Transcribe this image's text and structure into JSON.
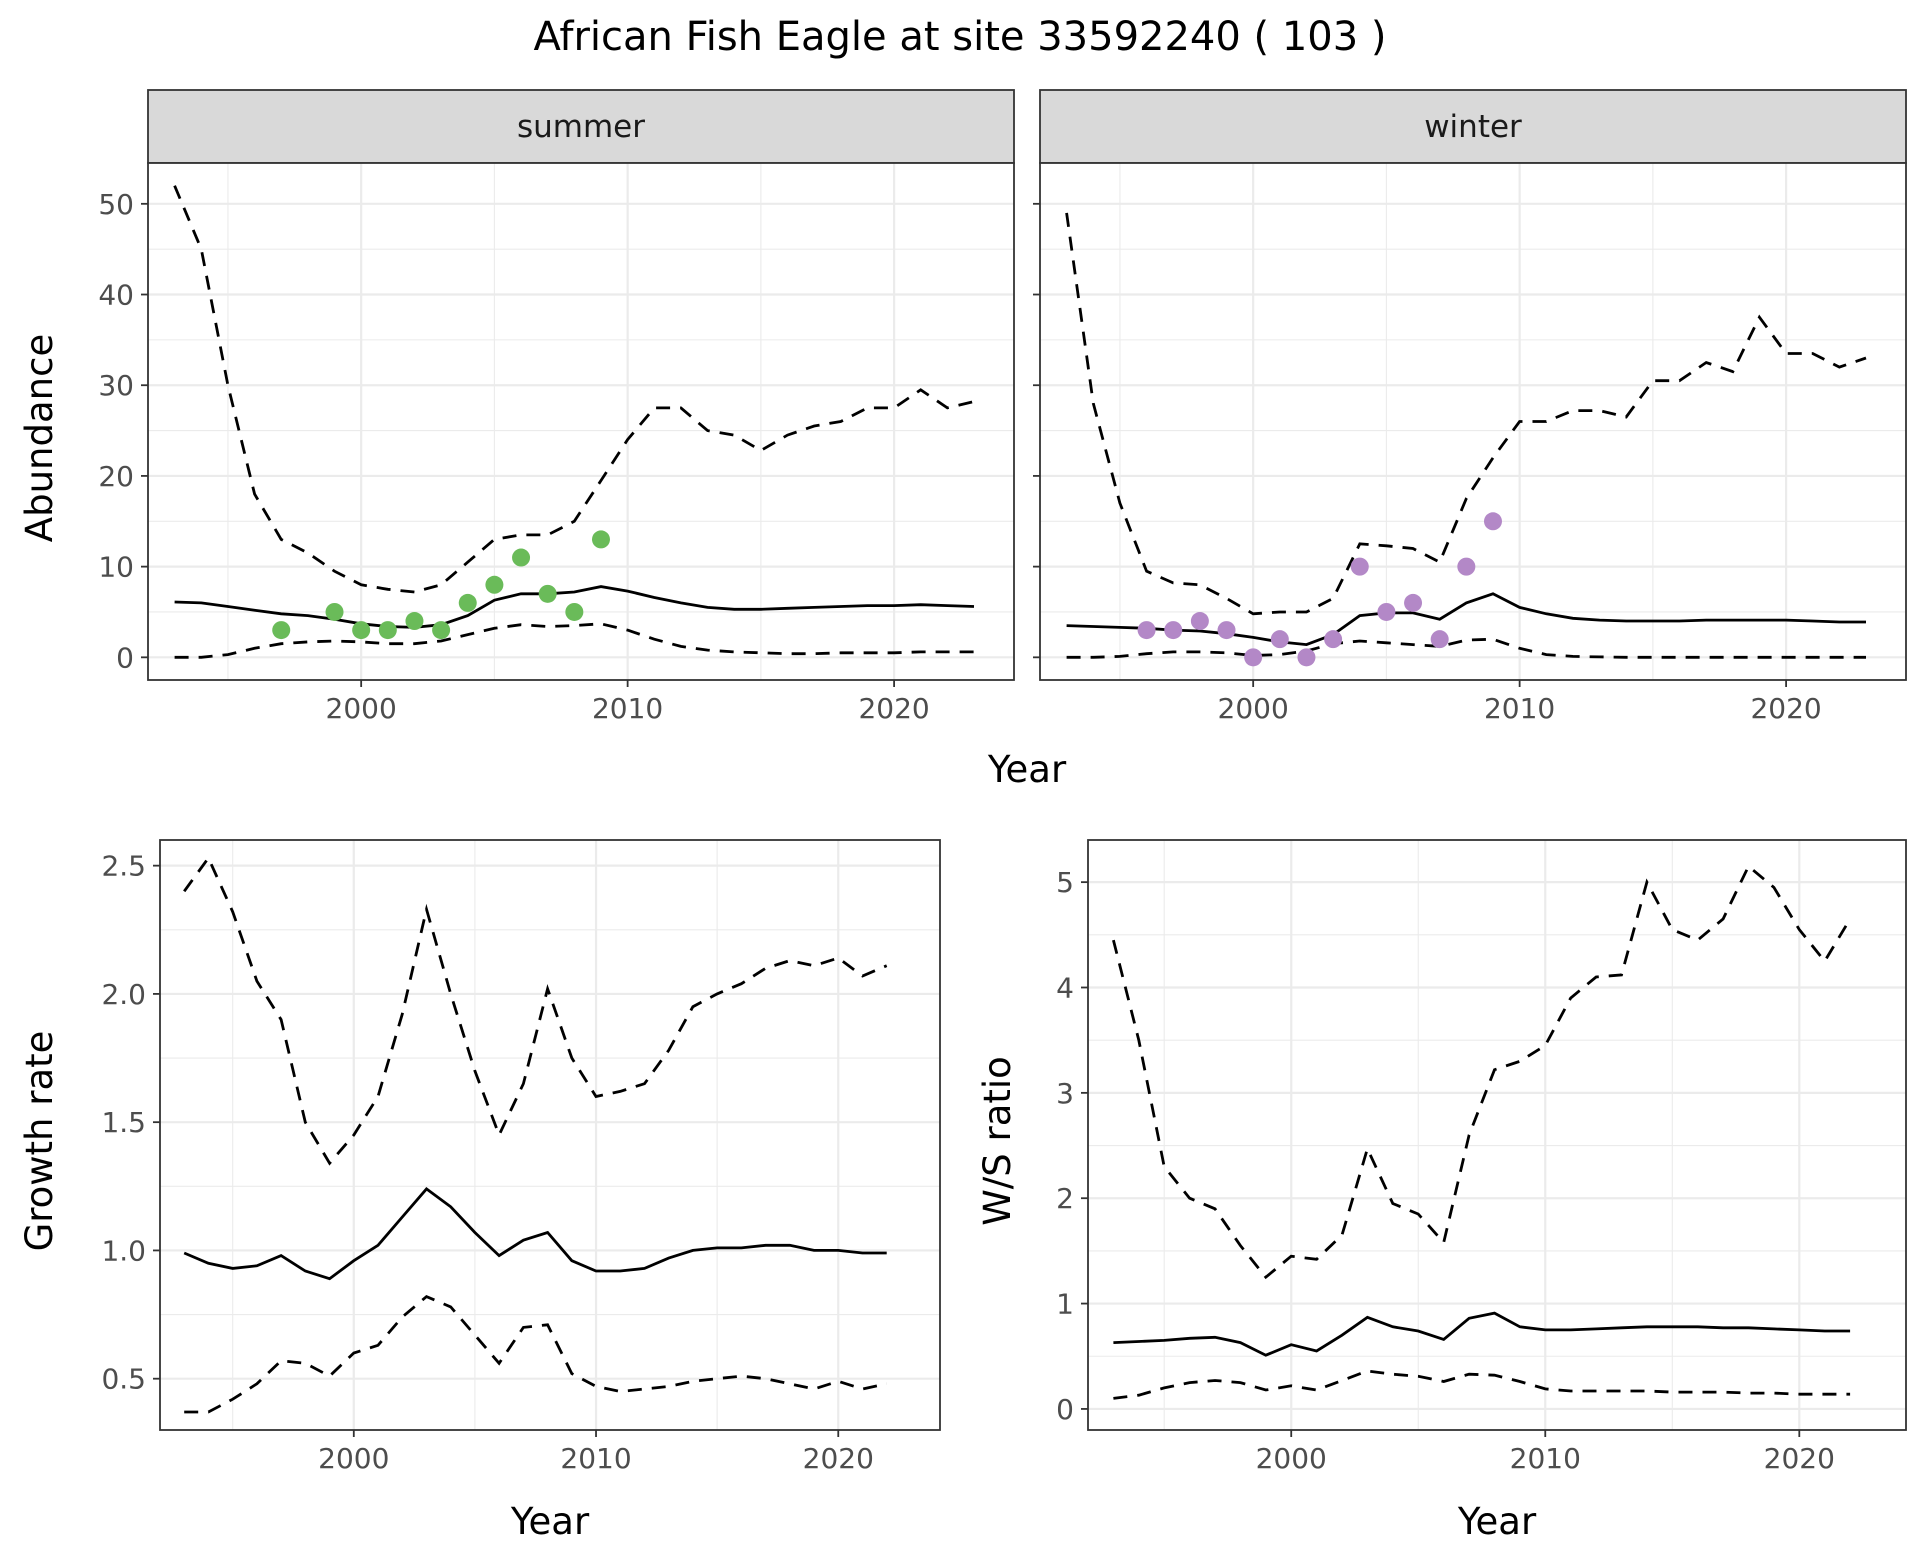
{
  "title": "African Fish Eagle at site 33592240 ( 103 )",
  "colors": {
    "summer_points": "#6abb59",
    "winter_points": "#b388c7",
    "lines": "#000000"
  },
  "chart_data": [
    {
      "id": "summer",
      "type": "line",
      "facet": "summer",
      "xlabel": "",
      "ylabel": "Abundance",
      "xlim": [
        1992,
        2024.5
      ],
      "ylim": [
        -2.5,
        54.5
      ],
      "xticks": [
        2000,
        2010,
        2020
      ],
      "yticks": [
        0,
        10,
        20,
        30,
        40,
        50
      ],
      "grid": true,
      "x": [
        1993,
        1994,
        1995,
        1996,
        1997,
        1998,
        1999,
        2000,
        2001,
        2002,
        2003,
        2004,
        2005,
        2006,
        2007,
        2008,
        2009,
        2010,
        2011,
        2012,
        2013,
        2014,
        2015,
        2016,
        2017,
        2018,
        2019,
        2020,
        2021,
        2022,
        2023
      ],
      "series": [
        {
          "style": "solid",
          "values": [
            6.1,
            6.0,
            5.6,
            5.2,
            4.8,
            4.6,
            4.2,
            3.7,
            3.4,
            3.3,
            3.6,
            4.6,
            6.3,
            7.0,
            7.0,
            7.2,
            7.8,
            7.3,
            6.6,
            6.0,
            5.5,
            5.3,
            5.3,
            5.4,
            5.5,
            5.6,
            5.7,
            5.7,
            5.8,
            5.7,
            5.6
          ]
        },
        {
          "style": "dashed",
          "values": [
            52,
            45,
            30,
            18,
            13,
            11.5,
            9.5,
            8,
            7.5,
            7.2,
            8,
            10.5,
            13,
            13.5,
            13.5,
            15,
            19.5,
            24,
            27.5,
            27.5,
            25,
            24.5,
            22.8,
            24.5,
            25.5,
            26,
            27.5,
            27.5,
            29.5,
            27.5,
            28.2
          ]
        },
        {
          "style": "dashed",
          "values": [
            0,
            0,
            0.3,
            1,
            1.5,
            1.7,
            1.8,
            1.7,
            1.5,
            1.5,
            1.8,
            2.5,
            3.2,
            3.6,
            3.4,
            3.5,
            3.7,
            3,
            2,
            1.2,
            0.8,
            0.6,
            0.5,
            0.4,
            0.4,
            0.5,
            0.5,
            0.5,
            0.6,
            0.6,
            0.6
          ]
        }
      ],
      "points": {
        "x": [
          1997,
          1999,
          2000,
          2001,
          2002,
          2003,
          2004,
          2005,
          2006,
          2007,
          2008,
          2009
        ],
        "y": [
          3,
          5,
          3,
          3,
          4,
          3,
          6,
          8,
          11,
          7,
          5,
          13
        ]
      }
    },
    {
      "id": "winter",
      "type": "line",
      "facet": "winter",
      "xlabel": "",
      "ylabel": "",
      "xlim": [
        1992,
        2024.5
      ],
      "ylim": [
        -2.5,
        54.5
      ],
      "xticks": [
        2000,
        2010,
        2020
      ],
      "yticks": [
        0,
        10,
        20,
        30,
        40,
        50
      ],
      "grid": true,
      "x": [
        1993,
        1994,
        1995,
        1996,
        1997,
        1998,
        1999,
        2000,
        2001,
        2002,
        2003,
        2004,
        2005,
        2006,
        2007,
        2008,
        2009,
        2010,
        2011,
        2012,
        2013,
        2014,
        2015,
        2016,
        2017,
        2018,
        2019,
        2020,
        2021,
        2022,
        2023
      ],
      "series": [
        {
          "style": "solid",
          "values": [
            3.5,
            3.4,
            3.3,
            3.2,
            3.0,
            2.9,
            2.6,
            2.2,
            1.7,
            1.4,
            2.5,
            4.6,
            4.9,
            4.9,
            4.2,
            6.0,
            7.0,
            5.5,
            4.8,
            4.3,
            4.1,
            4.0,
            4.0,
            4.0,
            4.1,
            4.1,
            4.1,
            4.1,
            4.0,
            3.9,
            3.9
          ]
        },
        {
          "style": "dashed",
          "values": [
            49,
            28,
            17,
            9.5,
            8.2,
            8,
            6.5,
            4.8,
            5,
            5,
            6.5,
            12.5,
            12.3,
            12,
            10.5,
            17.5,
            22,
            26,
            26,
            27.2,
            27.2,
            26.5,
            30.5,
            30.5,
            32.5,
            31.5,
            37.5,
            33.5,
            33.5,
            32,
            33
          ]
        },
        {
          "style": "dashed",
          "values": [
            0,
            0,
            0.1,
            0.4,
            0.6,
            0.6,
            0.5,
            0.2,
            0.3,
            0.7,
            1.5,
            1.8,
            1.6,
            1.4,
            1.2,
            1.9,
            2,
            1,
            0.3,
            0.1,
            0.05,
            0,
            0,
            0,
            0,
            0,
            0,
            0,
            0,
            0,
            0
          ]
        }
      ],
      "points": {
        "x": [
          1996,
          1997,
          1998,
          1999,
          2000,
          2001,
          2002,
          2003,
          2004,
          2005,
          2006,
          2007,
          2008,
          2009
        ],
        "y": [
          3,
          3,
          4,
          3,
          0,
          2,
          0,
          2,
          10,
          5,
          6,
          2,
          10,
          15
        ]
      }
    },
    {
      "id": "growth",
      "type": "line",
      "xlabel": "Year",
      "ylabel": "Growth rate",
      "xlim": [
        1992,
        2024.2
      ],
      "ylim": [
        0.3,
        2.6
      ],
      "xticks": [
        2000,
        2010,
        2020
      ],
      "yticks": [
        0.5,
        1.0,
        1.5,
        2.0,
        2.5
      ],
      "ytick_labels": [
        "0.5",
        "1.0",
        "1.5",
        "2.0",
        "2.5"
      ],
      "grid": true,
      "x": [
        1993,
        1994,
        1995,
        1996,
        1997,
        1998,
        1999,
        2000,
        2001,
        2002,
        2003,
        2004,
        2005,
        2006,
        2007,
        2008,
        2009,
        2010,
        2011,
        2012,
        2013,
        2014,
        2015,
        2016,
        2017,
        2018,
        2019,
        2020,
        2021,
        2022
      ],
      "series": [
        {
          "style": "solid",
          "values": [
            0.99,
            0.95,
            0.93,
            0.94,
            0.98,
            0.92,
            0.89,
            0.96,
            1.02,
            1.13,
            1.24,
            1.17,
            1.07,
            0.98,
            1.04,
            1.07,
            0.96,
            0.92,
            0.92,
            0.93,
            0.97,
            1.0,
            1.01,
            1.01,
            1.02,
            1.02,
            1.0,
            1.0,
            0.99,
            0.99
          ]
        },
        {
          "style": "dashed",
          "values": [
            2.4,
            2.53,
            2.32,
            2.05,
            1.9,
            1.5,
            1.34,
            1.45,
            1.6,
            1.92,
            2.33,
            2.0,
            1.7,
            1.45,
            1.65,
            2.02,
            1.75,
            1.6,
            1.62,
            1.65,
            1.78,
            1.95,
            2.0,
            2.04,
            2.1,
            2.13,
            2.11,
            2.14,
            2.07,
            2.11
          ]
        },
        {
          "style": "dashed",
          "values": [
            0.37,
            0.37,
            0.42,
            0.48,
            0.57,
            0.56,
            0.51,
            0.6,
            0.63,
            0.74,
            0.82,
            0.78,
            0.67,
            0.56,
            0.7,
            0.71,
            0.52,
            0.47,
            0.45,
            0.46,
            0.47,
            0.49,
            0.5,
            0.51,
            0.5,
            0.48,
            0.46,
            0.49,
            0.46,
            0.48
          ]
        }
      ]
    },
    {
      "id": "wsratio",
      "type": "line",
      "xlabel": "Year",
      "ylabel": "W/S ratio",
      "xlim": [
        1992,
        2024.2
      ],
      "ylim": [
        -0.2,
        5.4
      ],
      "xticks": [
        2000,
        2010,
        2020
      ],
      "yticks": [
        0,
        1,
        2,
        3,
        4,
        5
      ],
      "grid": true,
      "x": [
        1993,
        1994,
        1995,
        1996,
        1997,
        1998,
        1999,
        2000,
        2001,
        2002,
        2003,
        2004,
        2005,
        2006,
        2007,
        2008,
        2009,
        2010,
        2011,
        2012,
        2013,
        2014,
        2015,
        2016,
        2017,
        2018,
        2019,
        2020,
        2021,
        2022
      ],
      "series": [
        {
          "style": "solid",
          "values": [
            0.63,
            0.64,
            0.65,
            0.67,
            0.68,
            0.63,
            0.51,
            0.61,
            0.55,
            0.7,
            0.87,
            0.78,
            0.74,
            0.66,
            0.86,
            0.91,
            0.78,
            0.75,
            0.75,
            0.76,
            0.77,
            0.78,
            0.78,
            0.78,
            0.77,
            0.77,
            0.76,
            0.75,
            0.74,
            0.74
          ]
        },
        {
          "style": "dashed",
          "values": [
            4.45,
            3.5,
            2.3,
            2.0,
            1.9,
            1.55,
            1.25,
            1.45,
            1.42,
            1.65,
            2.47,
            1.95,
            1.85,
            1.58,
            2.6,
            3.22,
            3.3,
            3.45,
            3.9,
            4.1,
            4.12,
            5.0,
            4.55,
            4.45,
            4.65,
            5.15,
            4.95,
            4.55,
            4.25,
            4.65
          ]
        },
        {
          "style": "dashed",
          "values": [
            0.1,
            0.13,
            0.2,
            0.25,
            0.27,
            0.25,
            0.18,
            0.22,
            0.18,
            0.27,
            0.36,
            0.33,
            0.31,
            0.26,
            0.33,
            0.32,
            0.26,
            0.19,
            0.17,
            0.17,
            0.17,
            0.17,
            0.16,
            0.16,
            0.16,
            0.15,
            0.15,
            0.14,
            0.14,
            0.14
          ]
        }
      ]
    }
  ],
  "shared_xlabel_top": "Year"
}
